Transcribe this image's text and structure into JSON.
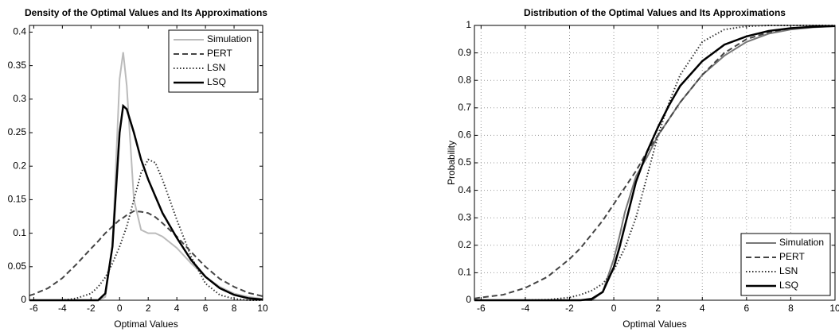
{
  "chart_data": [
    {
      "type": "line",
      "title": "Density of the Optimal Values and Its Approximations",
      "xlabel": "Optimal Values",
      "x": [
        -6.3,
        -6,
        -5,
        -4,
        -3,
        -2,
        -1.5,
        -1,
        -0.5,
        0,
        0.25,
        0.5,
        1,
        1.5,
        2,
        2.5,
        3,
        4,
        5,
        6,
        7,
        8,
        9,
        10
      ],
      "series": [
        {
          "name": "Simulation",
          "color": "#bbbbbb",
          "style": "solid",
          "values": [
            0,
            0,
            0,
            0,
            0,
            0,
            0,
            0.005,
            0.08,
            0.33,
            0.37,
            0.32,
            0.15,
            0.105,
            0.1,
            0.1,
            0.095,
            0.078,
            0.055,
            0.035,
            0.02,
            0.01,
            0.005,
            0.002
          ]
        },
        {
          "name": "PERT",
          "color": "#444444",
          "style": "dashed",
          "values": [
            0.007,
            0.009,
            0.018,
            0.033,
            0.054,
            0.077,
            0.088,
            0.1,
            0.11,
            0.12,
            0.123,
            0.127,
            0.133,
            0.132,
            0.13,
            0.124,
            0.115,
            0.095,
            0.072,
            0.05,
            0.032,
            0.02,
            0.011,
            0.006
          ]
        },
        {
          "name": "LSN",
          "color": "#333333",
          "style": "dotted",
          "values": [
            0,
            0,
            0,
            0,
            0.003,
            0.01,
            0.02,
            0.034,
            0.055,
            0.08,
            0.095,
            0.11,
            0.15,
            0.19,
            0.21,
            0.205,
            0.18,
            0.12,
            0.065,
            0.025,
            0.008,
            0.002,
            0,
            0
          ]
        },
        {
          "name": "LSQ",
          "color": "#000000",
          "style": "solid",
          "values": [
            0,
            0,
            0,
            0,
            0,
            0,
            0,
            0.01,
            0.08,
            0.25,
            0.29,
            0.285,
            0.25,
            0.21,
            0.18,
            0.155,
            0.13,
            0.093,
            0.06,
            0.035,
            0.018,
            0.008,
            0.003,
            0.001
          ]
        }
      ],
      "xlim": [
        -6.3,
        10
      ],
      "ylim": [
        0,
        0.41
      ],
      "xticks": [
        -6,
        -4,
        -2,
        0,
        2,
        4,
        6,
        8,
        10
      ],
      "yticks": [
        0,
        0.05,
        0.1,
        0.15,
        0.2,
        0.25,
        0.3,
        0.35,
        0.4
      ],
      "grid": false,
      "legend": "upper right"
    },
    {
      "type": "line",
      "title": "Distribution of the Optimal Values and Its Approximations",
      "xlabel": "Optimal Values",
      "ylabel": "Probability",
      "x": [
        -6.3,
        -6,
        -5,
        -4,
        -3,
        -2,
        -1.5,
        -1,
        -0.5,
        0,
        0.25,
        0.5,
        1,
        1.5,
        2,
        2.5,
        3,
        4,
        5,
        6,
        7,
        8,
        9,
        10
      ],
      "series": [
        {
          "name": "Simulation",
          "color": "#777777",
          "style": "solid",
          "values": [
            0,
            0,
            0,
            0,
            0,
            0,
            0,
            0,
            0.03,
            0.15,
            0.23,
            0.32,
            0.45,
            0.52,
            0.6,
            0.66,
            0.72,
            0.82,
            0.89,
            0.94,
            0.97,
            0.985,
            0.993,
            0.997
          ]
        },
        {
          "name": "PERT",
          "color": "#444444",
          "style": "dashed",
          "values": [
            0.006,
            0.01,
            0.02,
            0.045,
            0.085,
            0.15,
            0.19,
            0.24,
            0.29,
            0.35,
            0.38,
            0.41,
            0.47,
            0.54,
            0.6,
            0.66,
            0.72,
            0.82,
            0.9,
            0.95,
            0.975,
            0.99,
            0.995,
            0.998
          ]
        },
        {
          "name": "LSN",
          "color": "#333333",
          "style": "dotted",
          "values": [
            0,
            0,
            0,
            0,
            0.002,
            0.01,
            0.02,
            0.035,
            0.06,
            0.11,
            0.15,
            0.19,
            0.3,
            0.45,
            0.6,
            0.72,
            0.82,
            0.94,
            0.985,
            0.997,
            1,
            1,
            1,
            1
          ]
        },
        {
          "name": "LSQ",
          "color": "#000000",
          "style": "solid",
          "values": [
            0,
            0,
            0,
            0,
            0,
            0,
            0,
            0.005,
            0.03,
            0.12,
            0.19,
            0.27,
            0.43,
            0.54,
            0.63,
            0.71,
            0.78,
            0.87,
            0.93,
            0.96,
            0.98,
            0.99,
            0.995,
            0.998
          ]
        }
      ],
      "xlim": [
        -6.3,
        10
      ],
      "ylim": [
        0,
        1
      ],
      "xticks": [
        -6,
        -4,
        -2,
        0,
        2,
        4,
        6,
        8,
        10
      ],
      "yticks": [
        0,
        0.1,
        0.2,
        0.3,
        0.4,
        0.5,
        0.6,
        0.7,
        0.8,
        0.9,
        1
      ],
      "grid": true,
      "legend": "lower right"
    }
  ]
}
